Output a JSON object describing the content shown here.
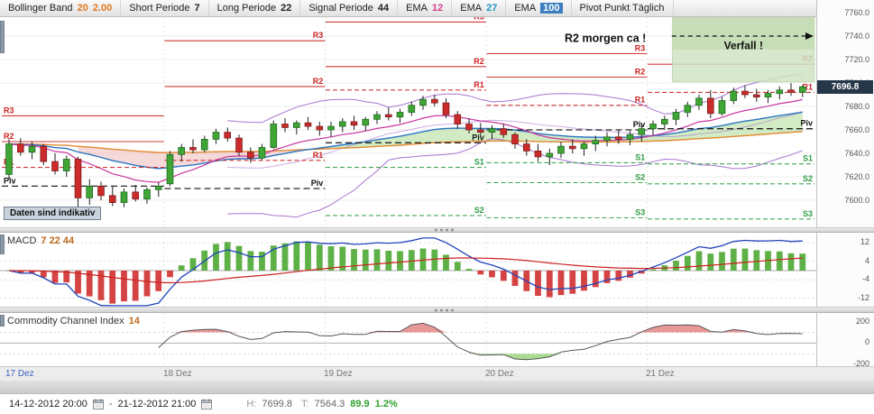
{
  "header": {
    "groups": [
      {
        "name": "bollinger-band",
        "parts": [
          {
            "t": "Bollinger Band",
            "c": "#222"
          },
          {
            "t": "20",
            "c": "#e07820"
          },
          {
            "t": "2.00",
            "c": "#e07820"
          }
        ]
      },
      {
        "name": "short-periode",
        "parts": [
          {
            "t": "Short Periode",
            "c": "#222"
          },
          {
            "t": "7",
            "c": "#222"
          }
        ]
      },
      {
        "name": "long-periode",
        "parts": [
          {
            "t": "Long Periode",
            "c": "#222"
          },
          {
            "t": "22",
            "c": "#222"
          }
        ]
      },
      {
        "name": "signal-periode",
        "parts": [
          {
            "t": "Signal Periode",
            "c": "#222"
          },
          {
            "t": "44",
            "c": "#222"
          }
        ]
      },
      {
        "name": "ema-12",
        "parts": [
          {
            "t": "EMA",
            "c": "#222"
          },
          {
            "t": "12",
            "c": "#d4418e"
          }
        ]
      },
      {
        "name": "ema-27",
        "parts": [
          {
            "t": "EMA",
            "c": "#222"
          },
          {
            "t": "27",
            "c": "#2196c4"
          }
        ]
      },
      {
        "name": "ema-100",
        "parts": [
          {
            "t": "EMA",
            "c": "#222"
          },
          {
            "t": "100",
            "c": "#ffffff",
            "bg": "#3d7ebf"
          }
        ]
      },
      {
        "name": "pivot-punkt",
        "parts": [
          {
            "t": "Pivot Punkt Täglich",
            "c": "#222"
          }
        ]
      }
    ]
  },
  "chart_data": {
    "type": "candlestick",
    "instrument_last_price_box": "7696.8",
    "last_price": "7696.8",
    "y_ticks": [
      7760,
      7740,
      7720,
      7700,
      7680,
      7660,
      7640,
      7620,
      7600
    ],
    "x_labels": [
      {
        "label": "17 Dez",
        "index": 0,
        "highlight": true
      },
      {
        "label": "18 Dez",
        "index": 14
      },
      {
        "label": "19 Dez",
        "index": 28
      },
      {
        "label": "20 Dez",
        "index": 42
      },
      {
        "label": "21 Dez",
        "index": 56
      }
    ],
    "day_start_indices": [
      0,
      14,
      28,
      42,
      56
    ],
    "candles": [
      [
        7622,
        7652,
        7618,
        7648
      ],
      [
        7648,
        7653,
        7638,
        7641
      ],
      [
        7641,
        7650,
        7635,
        7646
      ],
      [
        7646,
        7648,
        7630,
        7633
      ],
      [
        7633,
        7640,
        7622,
        7625
      ],
      [
        7625,
        7638,
        7620,
        7635
      ],
      [
        7635,
        7637,
        7592,
        7602
      ],
      [
        7602,
        7618,
        7596,
        7612
      ],
      [
        7612,
        7616,
        7600,
        7604
      ],
      [
        7604,
        7612,
        7595,
        7598
      ],
      [
        7598,
        7610,
        7594,
        7607
      ],
      [
        7607,
        7613,
        7599,
        7601
      ],
      [
        7601,
        7611,
        7597,
        7609
      ],
      [
        7609,
        7615,
        7603,
        7612
      ],
      [
        7614,
        7642,
        7612,
        7639
      ],
      [
        7639,
        7648,
        7633,
        7645
      ],
      [
        7645,
        7652,
        7640,
        7643
      ],
      [
        7643,
        7655,
        7641,
        7652
      ],
      [
        7652,
        7661,
        7648,
        7658
      ],
      [
        7658,
        7662,
        7650,
        7653
      ],
      [
        7653,
        7656,
        7638,
        7641
      ],
      [
        7641,
        7645,
        7632,
        7636
      ],
      [
        7636,
        7648,
        7634,
        7645
      ],
      [
        7645,
        7668,
        7644,
        7665
      ],
      [
        7665,
        7670,
        7658,
        7662
      ],
      [
        7662,
        7668,
        7656,
        7666
      ],
      [
        7666,
        7671,
        7660,
        7663
      ],
      [
        7663,
        7667,
        7655,
        7660
      ],
      [
        7660,
        7667,
        7654,
        7663
      ],
      [
        7663,
        7670,
        7658,
        7667
      ],
      [
        7667,
        7672,
        7660,
        7664
      ],
      [
        7664,
        7671,
        7659,
        7669
      ],
      [
        7669,
        7676,
        7665,
        7673
      ],
      [
        7673,
        7679,
        7668,
        7671
      ],
      [
        7671,
        7678,
        7666,
        7675
      ],
      [
        7675,
        7684,
        7672,
        7681
      ],
      [
        7681,
        7689,
        7677,
        7686
      ],
      [
        7686,
        7690,
        7680,
        7683
      ],
      [
        7683,
        7687,
        7670,
        7673
      ],
      [
        7673,
        7676,
        7661,
        7665
      ],
      [
        7665,
        7670,
        7657,
        7660
      ],
      [
        7660,
        7666,
        7654,
        7658
      ],
      [
        7658,
        7664,
        7652,
        7661
      ],
      [
        7661,
        7665,
        7653,
        7656
      ],
      [
        7656,
        7658,
        7644,
        7648
      ],
      [
        7648,
        7652,
        7638,
        7642
      ],
      [
        7642,
        7648,
        7633,
        7637
      ],
      [
        7637,
        7644,
        7630,
        7640
      ],
      [
        7640,
        7650,
        7636,
        7646
      ],
      [
        7646,
        7652,
        7640,
        7644
      ],
      [
        7644,
        7650,
        7638,
        7648
      ],
      [
        7648,
        7655,
        7642,
        7651
      ],
      [
        7651,
        7658,
        7646,
        7654
      ],
      [
        7654,
        7660,
        7648,
        7652
      ],
      [
        7652,
        7659,
        7647,
        7656
      ],
      [
        7656,
        7664,
        7650,
        7661
      ],
      [
        7661,
        7668,
        7655,
        7665
      ],
      [
        7665,
        7672,
        7660,
        7669
      ],
      [
        7669,
        7678,
        7664,
        7675
      ],
      [
        7675,
        7684,
        7671,
        7681
      ],
      [
        7681,
        7690,
        7677,
        7687
      ],
      [
        7687,
        7694,
        7670,
        7674
      ],
      [
        7674,
        7688,
        7672,
        7685
      ],
      [
        7685,
        7696,
        7682,
        7693
      ],
      [
        7693,
        7698,
        7687,
        7690
      ],
      [
        7690,
        7695,
        7684,
        7688
      ],
      [
        7688,
        7694,
        7683,
        7691
      ],
      [
        7691,
        7697,
        7686,
        7694
      ],
      [
        7694,
        7699.8,
        7689,
        7692
      ],
      [
        7692,
        7698,
        7688,
        7696.8
      ]
    ],
    "overlays": {
      "ema_fast": 12,
      "ema_mid": 27,
      "ema_slow": 100,
      "bollinger": {
        "period": 20,
        "stddev": 2
      }
    },
    "pivot_segments": [
      {
        "day": "17 Dez",
        "i0": 0,
        "i1": 13,
        "label_at": "start",
        "levels": {
          "R3": 7672,
          "R2": 7650,
          "R1": 7628,
          "Piv": 7612
        }
      },
      {
        "day": "18 Dez",
        "i0": 14,
        "i1": 27,
        "label_at": "end",
        "levels": {
          "R3": 7736,
          "R2": 7697,
          "R1": 7634,
          "Piv": 7610
        }
      },
      {
        "day": "19 Dez",
        "i0": 28,
        "i1": 41,
        "label_at": "end",
        "levels": {
          "R3": 7752,
          "R2": 7714,
          "R1": 7694,
          "Piv": 7649,
          "S1": 7628,
          "S2": 7587
        }
      },
      {
        "day": "20 Dez",
        "i0": 42,
        "i1": 55,
        "label_at": "end",
        "levels": {
          "R3": 7725,
          "R2": 7705,
          "R1": 7681,
          "Piv": 7660,
          "S1": 7632,
          "S2": 7615,
          "S3": 7585
        }
      },
      {
        "day": "21 Dez",
        "i0": 56,
        "i1": 69,
        "label_at": "end",
        "levels": {
          "R2": 7716,
          "R1": 7692,
          "Piv": 7661,
          "S1": 7631,
          "S2": 7614,
          "S3": 7584
        }
      }
    ],
    "annotations": {
      "r2_morgen": {
        "text": "R2 morgen ca !",
        "price": 7740,
        "arrow_from_index": 57,
        "arrow_to_index": 69
      },
      "verfall": {
        "text": "Verfall !",
        "from_index": 58,
        "price_top": 7757,
        "price_bottom": 7701
      },
      "daten": {
        "text": "Daten sind indikativ"
      }
    },
    "macd": {
      "label": "MACD",
      "params": "7  22  44",
      "ticks": [
        12,
        4,
        -4,
        -12
      ]
    },
    "cci": {
      "label": "Commodity Channel Index",
      "params": "14",
      "ticks": [
        200,
        0,
        -200
      ],
      "bands": [
        100,
        -100
      ]
    },
    "colors": {
      "up": "#3fa535",
      "down": "#cc2b2b",
      "ema_fast": "#c9379f",
      "ema_mid": "#2a74c4",
      "ema_slow": "#e2882f",
      "bollinger": "#9a5bc8",
      "cloud_up": "#8fce6f",
      "cloud_down": "#e9a0a0",
      "macd_line": "#2244bb",
      "signal_line": "#cc2222",
      "hist_up": "#4ca832",
      "hist_down": "#d03030",
      "cci_line": "#555555",
      "cci_high": "#e06c6c",
      "cci_low": "#8fce6f",
      "pivot_r": "#cc2222",
      "pivot_s": "#2f9e44",
      "pivot_p": "#111111"
    }
  },
  "status_bar": {
    "from_date": "14-12-2012 20:00",
    "separator": "-",
    "to_date": "21-12-2012 21:00",
    "high_label": "H:",
    "high": "7699.8",
    "low_label": "T:",
    "low": "7564.3",
    "change": "89.9",
    "change_pct": "1.2%"
  }
}
